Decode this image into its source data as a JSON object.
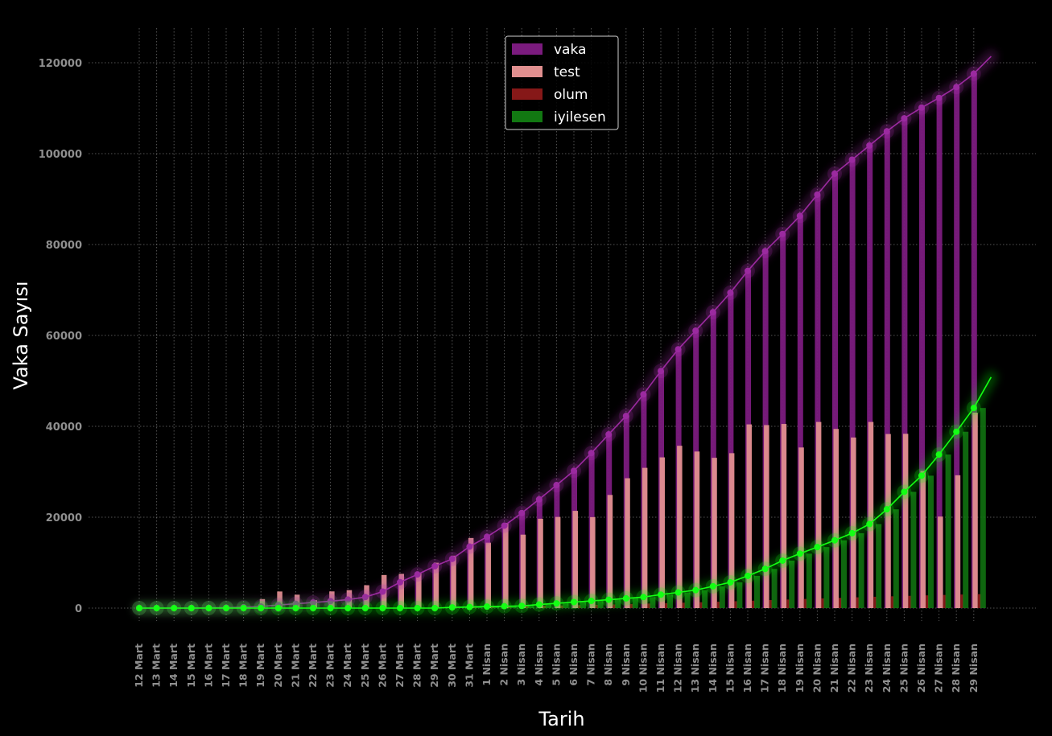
{
  "chart_data": {
    "type": "bar",
    "title": "",
    "xlabel": "Tarih",
    "ylabel": "Vaka Sayısı",
    "ylim": [
      -3000,
      128000
    ],
    "yticks": [
      0,
      20000,
      40000,
      60000,
      80000,
      100000,
      120000
    ],
    "ytick_labels": [
      "0",
      "20000",
      "40000",
      "60000",
      "80000",
      "100000",
      "120000"
    ],
    "grid": true,
    "legend_position": "top-center",
    "categories": [
      "12 Mart",
      "13 Mart",
      "14 Mart",
      "15 Mart",
      "16 Mart",
      "17 Mart",
      "18 Mart",
      "19 Mart",
      "20 Mart",
      "21 Mart",
      "22 Mart",
      "23 Mart",
      "24 Mart",
      "25 Mart",
      "26 Mart",
      "27 Mart",
      "28 Mart",
      "29 Mart",
      "30 Mart",
      "31 Mart",
      "1 Nisan",
      "2 Nisan",
      "3 Nisan",
      "4 Nisan",
      "5 Nisan",
      "6 Nisan",
      "7 Nisan",
      "8 Nisan",
      "9 Nisan",
      "10 Nisan",
      "11 Nisan",
      "12 Nisan",
      "13 Nisan",
      "14 Nisan",
      "15 Nisan",
      "16 Nisan",
      "17 Nisan",
      "18 Nisan",
      "19 Nisan",
      "20 Nisan",
      "21 Nisan",
      "22 Nisan",
      "23 Nisan",
      "24 Nisan",
      "25 Nisan",
      "26 Nisan",
      "27 Nisan",
      "28 Nisan",
      "29 Nisan"
    ],
    "series": [
      {
        "name": "vaka",
        "color": "#7b1b7e",
        "line_color": "#9b2aa0",
        "values": [
          1,
          5,
          6,
          18,
          47,
          98,
          191,
          359,
          670,
          947,
          1236,
          1529,
          1872,
          2433,
          3629,
          5698,
          7402,
          9217,
          10827,
          13531,
          15679,
          18135,
          20921,
          23934,
          27069,
          30217,
          34109,
          38226,
          42282,
          47029,
          52167,
          56956,
          61049,
          65111,
          69392,
          74193,
          78546,
          82329,
          86306,
          90980,
          95591,
          98674,
          101790,
          104912,
          107773,
          110130,
          112261,
          114653,
          117589
        ]
      },
      {
        "name": "test",
        "color": "#e08f8f",
        "values": [
          0,
          0,
          0,
          0,
          0,
          0,
          0,
          1981,
          3656,
          2953,
          1738,
          3672,
          3952,
          5035,
          7286,
          7533,
          7641,
          9982,
          11535,
          15422,
          14396,
          18757,
          16160,
          19664,
          20065,
          21400,
          20023,
          24900,
          28578,
          30864,
          33170,
          35720,
          34456,
          33070,
          34090,
          40427,
          40270,
          40520,
          35344,
          40962,
          39429,
          37535,
          40962,
          38308,
          38351,
          30177,
          20143,
          29230,
          43000
        ]
      },
      {
        "name": "olum",
        "color": "#861818",
        "values": [
          0,
          0,
          0,
          0,
          0,
          1,
          3,
          4,
          9,
          21,
          30,
          37,
          44,
          59,
          75,
          92,
          108,
          131,
          168,
          214,
          277,
          356,
          425,
          501,
          574,
          649,
          725,
          812,
          908,
          1006,
          1101,
          1198,
          1296,
          1403,
          1518,
          1643,
          1769,
          1890,
          2017,
          2140,
          2259,
          2376,
          2491,
          2600,
          2706,
          2805,
          2900,
          2992,
          3081
        ]
      },
      {
        "name": "iyilesen",
        "color": "#127812",
        "line_color": "#14ff14",
        "values": [
          0,
          0,
          0,
          0,
          0,
          0,
          0,
          0,
          0,
          0,
          0,
          0,
          0,
          0,
          0,
          0,
          0,
          0,
          162,
          243,
          333,
          415,
          484,
          786,
          1042,
          1326,
          1582,
          1846,
          2142,
          2423,
          2965,
          3446,
          3957,
          4799,
          5674,
          7089,
          8631,
          10453,
          11976,
          13430,
          14918,
          16477,
          18491,
          21737,
          25582,
          29140,
          33791,
          38809,
          44040
        ]
      }
    ]
  }
}
